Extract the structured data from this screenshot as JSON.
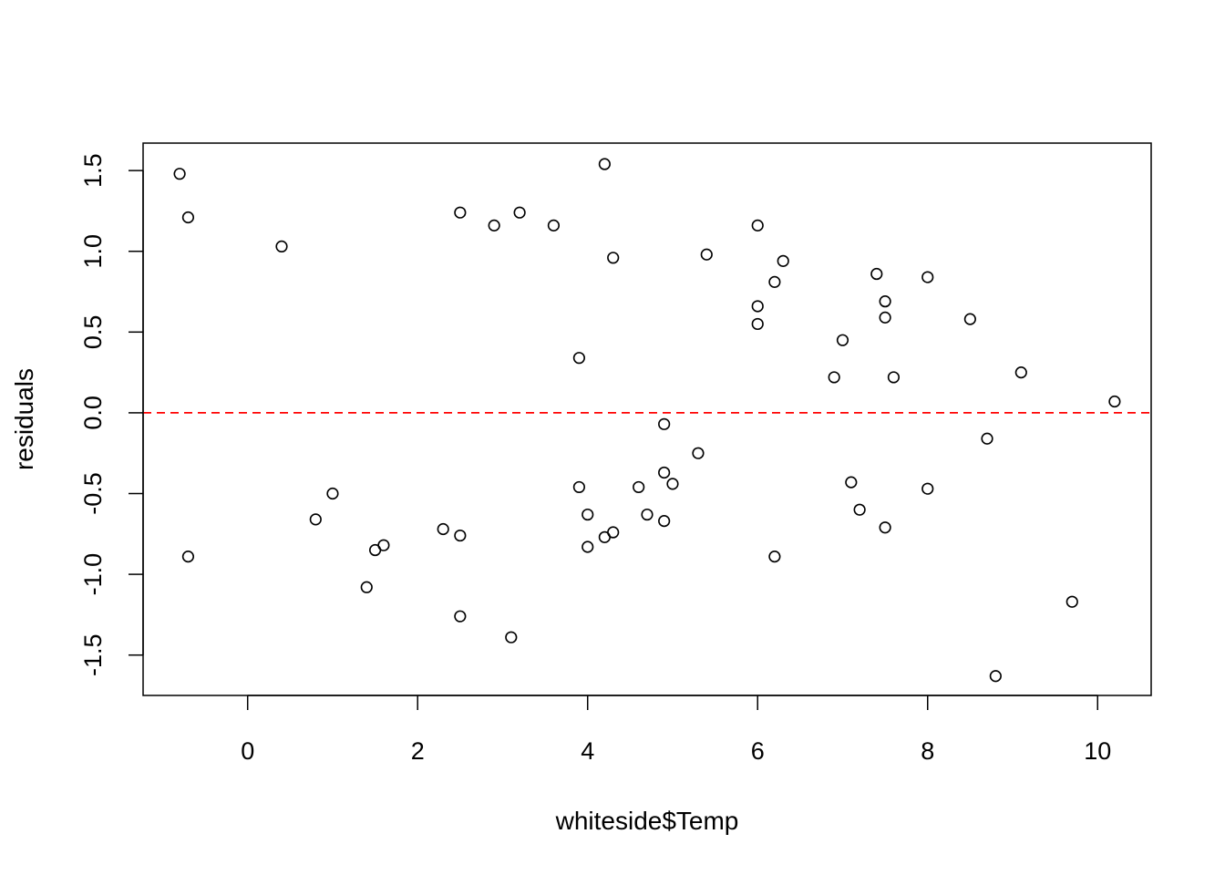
{
  "chart_data": {
    "type": "scatter",
    "title": "",
    "xlabel": "whiteside$Temp",
    "ylabel": "residuals",
    "xlim": [
      -1.23,
      10.63
    ],
    "ylim": [
      -1.75,
      1.67
    ],
    "xticks": [
      0,
      2,
      4,
      6,
      8,
      10
    ],
    "xtick_labels": [
      "0",
      "2",
      "4",
      "6",
      "8",
      "10"
    ],
    "yticks": [
      -1.5,
      -1.0,
      -0.5,
      0.0,
      0.5,
      1.0,
      1.5
    ],
    "ytick_labels": [
      "-1.5",
      "-1.0",
      "-0.5",
      "0.0",
      "0.5",
      "1.0",
      "1.5"
    ],
    "grid": false,
    "legend": null,
    "reference_line": {
      "y": 0,
      "style": "dashed",
      "color": "#ff0000"
    },
    "point_color": "#000000",
    "points": [
      [
        -0.8,
        1.48
      ],
      [
        -0.7,
        1.21
      ],
      [
        -0.7,
        -0.89
      ],
      [
        0.4,
        1.03
      ],
      [
        0.8,
        -0.66
      ],
      [
        1.0,
        -0.5
      ],
      [
        1.4,
        -1.08
      ],
      [
        1.5,
        -0.85
      ],
      [
        1.6,
        -0.82
      ],
      [
        2.3,
        -0.72
      ],
      [
        2.5,
        1.24
      ],
      [
        2.5,
        -0.76
      ],
      [
        2.5,
        -1.26
      ],
      [
        2.9,
        1.16
      ],
      [
        3.1,
        -1.39
      ],
      [
        3.2,
        1.24
      ],
      [
        3.6,
        1.16
      ],
      [
        3.9,
        0.34
      ],
      [
        3.9,
        -0.46
      ],
      [
        4.0,
        -0.63
      ],
      [
        4.0,
        -0.83
      ],
      [
        4.2,
        1.54
      ],
      [
        4.2,
        -0.77
      ],
      [
        4.3,
        0.96
      ],
      [
        4.3,
        -0.74
      ],
      [
        4.6,
        -0.46
      ],
      [
        4.7,
        -0.63
      ],
      [
        4.9,
        -0.07
      ],
      [
        4.9,
        -0.37
      ],
      [
        4.9,
        -0.67
      ],
      [
        5.0,
        -0.44
      ],
      [
        5.3,
        -0.25
      ],
      [
        5.4,
        0.98
      ],
      [
        6.0,
        1.16
      ],
      [
        6.0,
        0.66
      ],
      [
        6.0,
        0.55
      ],
      [
        6.2,
        0.81
      ],
      [
        6.2,
        -0.89
      ],
      [
        6.3,
        0.94
      ],
      [
        6.9,
        0.22
      ],
      [
        7.0,
        0.45
      ],
      [
        7.1,
        -0.43
      ],
      [
        7.2,
        -0.6
      ],
      [
        7.4,
        0.86
      ],
      [
        7.5,
        0.69
      ],
      [
        7.5,
        0.59
      ],
      [
        7.5,
        -0.71
      ],
      [
        7.6,
        0.22
      ],
      [
        8.0,
        0.84
      ],
      [
        8.0,
        -0.47
      ],
      [
        8.5,
        0.58
      ],
      [
        8.7,
        -0.16
      ],
      [
        8.8,
        -1.63
      ],
      [
        9.1,
        0.25
      ],
      [
        9.7,
        -1.17
      ],
      [
        10.2,
        0.07
      ]
    ]
  }
}
